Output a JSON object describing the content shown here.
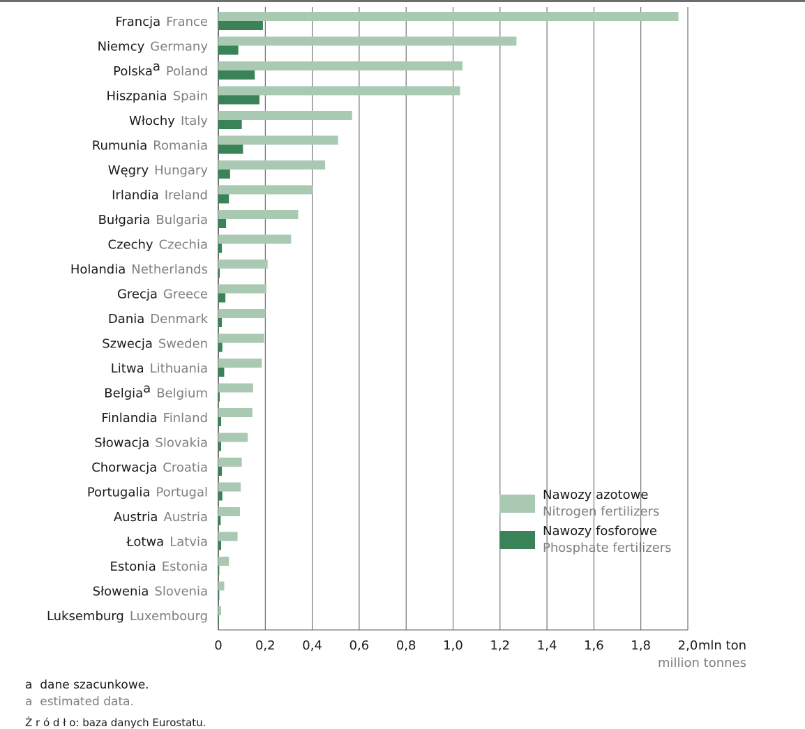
{
  "chart_data": {
    "type": "bar",
    "orientation": "horizontal",
    "categories_pl": [
      "Francja",
      "Niemcy",
      "Polska",
      "Hiszpania",
      "Włochy",
      "Rumunia",
      "Węgry",
      "Irlandia",
      "Bułgaria",
      "Czechy",
      "Holandia",
      "Grecja",
      "Dania",
      "Szwecja",
      "Litwa",
      "Belgia",
      "Finlandia",
      "Słowacja",
      "Chorwacja",
      "Portugalia",
      "Austria",
      "Łotwa",
      "Estonia",
      "Słowenia",
      "Luksemburg"
    ],
    "categories_en": [
      "France",
      "Germany",
      "Poland",
      "Spain",
      "Italy",
      "Romania",
      "Hungary",
      "Ireland",
      "Bulgaria",
      "Czechia",
      "Netherlands",
      "Greece",
      "Denmark",
      "Sweden",
      "Lithuania",
      "Belgium",
      "Finland",
      "Slovakia",
      "Croatia",
      "Portugal",
      "Austria",
      "Latvia",
      "Estonia",
      "Slovenia",
      "Luxembourg"
    ],
    "superscripts": [
      "",
      "",
      "a",
      "",
      "",
      "",
      "",
      "",
      "",
      "",
      "",
      "",
      "",
      "",
      "",
      "a",
      "",
      "",
      "",
      "",
      "",
      "",
      "",
      "",
      ""
    ],
    "series": [
      {
        "name": "Nawozy azotowe",
        "name_en": "Nitrogen fertilizers",
        "color": "#a9c9b2",
        "values": [
          1.96,
          1.27,
          1.04,
          1.03,
          0.57,
          0.51,
          0.455,
          0.4,
          0.34,
          0.31,
          0.21,
          0.205,
          0.2,
          0.195,
          0.185,
          0.148,
          0.145,
          0.125,
          0.1,
          0.095,
          0.092,
          0.082,
          0.045,
          0.025,
          0.012
        ]
      },
      {
        "name": "Nawozy fosforowe",
        "name_en": "Phosphate fertilizers",
        "color": "#3a8258",
        "values": [
          0.19,
          0.085,
          0.155,
          0.175,
          0.1,
          0.105,
          0.05,
          0.045,
          0.033,
          0.015,
          0.006,
          0.03,
          0.015,
          0.017,
          0.025,
          0.006,
          0.012,
          0.012,
          0.015,
          0.017,
          0.01,
          0.012,
          0.004,
          0.004,
          0.002
        ]
      }
    ],
    "xlim": [
      0,
      2.0
    ],
    "x_ticks": [
      "0",
      "0,2",
      "0,4",
      "0,6",
      "0,8",
      "1,0",
      "1,2",
      "1,4",
      "1,6",
      "1,8",
      "2,0"
    ],
    "x_unit": "mln ton",
    "x_unit_en": "million tonnes",
    "grid": true,
    "legend_position": "bottom-right"
  },
  "footnote": {
    "marker": "a",
    "pl": "dane szacunkowe.",
    "en": "estimated data."
  },
  "source": "Ź r ó d ł o: baza danych Eurostatu."
}
